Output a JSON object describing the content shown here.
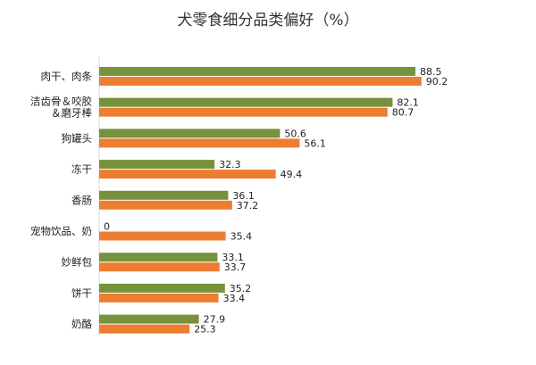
{
  "chart_data": {
    "type": "bar",
    "orientation": "horizontal",
    "title": "犬零食细分品类偏好（%）",
    "categories": [
      [
        "肉干、肉条"
      ],
      [
        "洁齿骨＆咬胶",
        "＆磨牙棒"
      ],
      [
        "狗罐头"
      ],
      [
        "冻干"
      ],
      [
        "香肠"
      ],
      [
        "宠物饮品、奶"
      ],
      [
        "妙鲜包"
      ],
      [
        "饼干"
      ],
      [
        "奶酪"
      ]
    ],
    "series": [
      {
        "color": "#76923C",
        "values": [
          88.5,
          82.1,
          50.6,
          32.3,
          36.1,
          0,
          33.1,
          35.2,
          27.9
        ]
      },
      {
        "color": "#ED7D31",
        "values": [
          90.2,
          80.7,
          56.1,
          49.4,
          37.2,
          35.4,
          33.7,
          33.4,
          25.3
        ]
      }
    ],
    "xlim": [
      0,
      100
    ],
    "grid": false,
    "legend": "none"
  }
}
